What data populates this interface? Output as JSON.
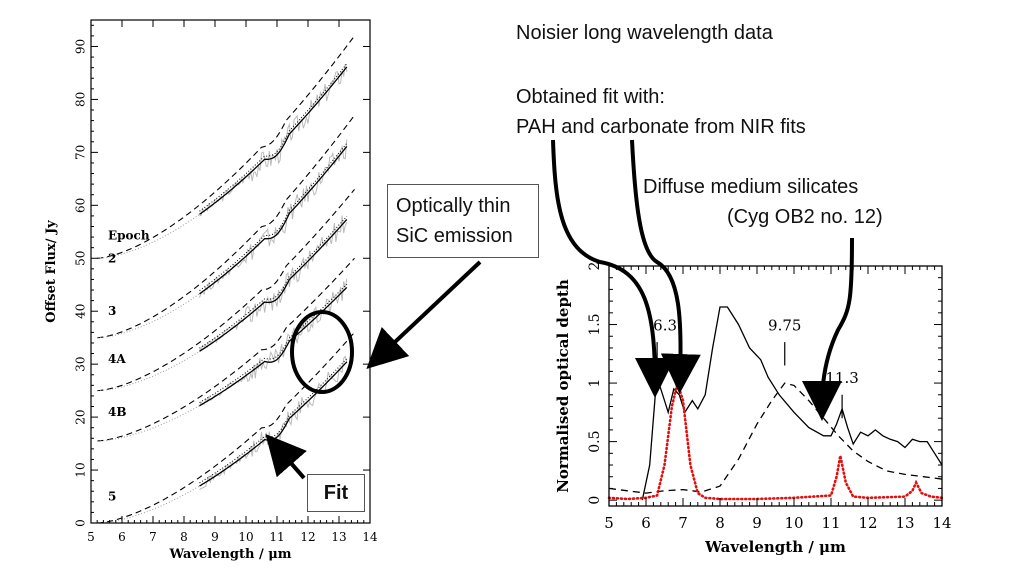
{
  "annotations": {
    "noisier": "Noisier long wavelength data",
    "obtained_line1": "Obtained fit with:",
    "obtained_line2": "PAH and carbonate from NIR fits",
    "diffuse_line1": "Diffuse medium silicates",
    "diffuse_line2": "(Cyg OB2 no. 12)",
    "sic_line1": "Optically thin",
    "sic_line2": "SiC emission",
    "fit_label": "Fit"
  },
  "chart_data": [
    {
      "type": "line",
      "xlabel": "Wavelength / μm",
      "ylabel": "Offset Flux/ Jy",
      "xlim": [
        5,
        14
      ],
      "ylim": [
        0,
        95
      ],
      "x_ticks": [
        "5",
        "6",
        "7",
        "8",
        "9",
        "10",
        "11",
        "12",
        "13",
        "14"
      ],
      "y_ticks": [
        "0",
        "10",
        "20",
        "30",
        "40",
        "50",
        "60",
        "70",
        "80",
        "90"
      ],
      "legend_title": "Epoch",
      "epochs": [
        {
          "name": "2",
          "label_y": 50,
          "base": 50,
          "top_obs": 88
        },
        {
          "name": "3",
          "label_y": 40,
          "base": 35,
          "top_obs": 73
        },
        {
          "name": "4A",
          "label_y": 31,
          "base": 25,
          "top_obs": 59
        },
        {
          "name": "4B",
          "label_y": 21,
          "base": 15.5,
          "top_obs": 46
        },
        {
          "name": "5",
          "label_y": 5,
          "base": 0,
          "top_obs": 32
        }
      ]
    },
    {
      "type": "line",
      "xlabel": "Wavelength / μm",
      "ylabel": "Normalised optical depth",
      "xlim": [
        5,
        14
      ],
      "ylim": [
        -0.05,
        2
      ],
      "x_ticks": [
        "5",
        "6",
        "7",
        "8",
        "9",
        "10",
        "11",
        "12",
        "13",
        "14"
      ],
      "y_ticks": [
        "0",
        "0.5",
        "1",
        "1.5",
        "2"
      ],
      "feature_labels": [
        {
          "text": "6.3",
          "x": 6.3,
          "y": 1.45
        },
        {
          "text": "9.75",
          "x": 9.75,
          "y": 1.45
        },
        {
          "text": "11.3",
          "x": 11.3,
          "y": 1.0
        }
      ],
      "series": [
        {
          "style": "solid",
          "color": "#000000",
          "points": [
            [
              5.9,
              0.0
            ],
            [
              6.1,
              0.3
            ],
            [
              6.25,
              0.9
            ],
            [
              6.35,
              1.0
            ],
            [
              6.5,
              0.85
            ],
            [
              6.6,
              0.75
            ],
            [
              6.75,
              0.95
            ],
            [
              6.9,
              0.9
            ],
            [
              7.05,
              0.75
            ],
            [
              7.25,
              0.85
            ],
            [
              7.4,
              0.78
            ],
            [
              7.6,
              0.9
            ],
            [
              7.8,
              1.3
            ],
            [
              8.0,
              1.65
            ],
            [
              8.2,
              1.65
            ],
            [
              8.5,
              1.5
            ],
            [
              8.8,
              1.3
            ],
            [
              9.1,
              1.2
            ],
            [
              9.3,
              1.05
            ],
            [
              9.6,
              0.9
            ],
            [
              10.0,
              0.75
            ],
            [
              10.4,
              0.62
            ],
            [
              10.8,
              0.55
            ],
            [
              11.0,
              0.55
            ],
            [
              11.15,
              0.65
            ],
            [
              11.3,
              0.78
            ],
            [
              11.45,
              0.62
            ],
            [
              11.6,
              0.48
            ],
            [
              11.8,
              0.58
            ],
            [
              12.0,
              0.55
            ],
            [
              12.2,
              0.6
            ],
            [
              12.4,
              0.55
            ],
            [
              12.6,
              0.52
            ],
            [
              12.8,
              0.5
            ],
            [
              13.0,
              0.45
            ],
            [
              13.2,
              0.52
            ],
            [
              13.4,
              0.5
            ],
            [
              13.6,
              0.5
            ],
            [
              13.8,
              0.4
            ],
            [
              14.0,
              0.3
            ]
          ]
        },
        {
          "style": "dashed",
          "color": "#000000",
          "points": [
            [
              5.0,
              0.1
            ],
            [
              5.5,
              0.08
            ],
            [
              6.0,
              0.06
            ],
            [
              6.5,
              0.08
            ],
            [
              7.0,
              0.09
            ],
            [
              7.5,
              0.07
            ],
            [
              8.0,
              0.12
            ],
            [
              8.5,
              0.35
            ],
            [
              9.0,
              0.65
            ],
            [
              9.4,
              0.85
            ],
            [
              9.75,
              1.0
            ],
            [
              10.0,
              0.98
            ],
            [
              10.4,
              0.85
            ],
            [
              10.8,
              0.7
            ],
            [
              11.2,
              0.55
            ],
            [
              11.6,
              0.42
            ],
            [
              12.0,
              0.33
            ],
            [
              12.5,
              0.25
            ],
            [
              13.0,
              0.22
            ],
            [
              13.5,
              0.2
            ],
            [
              14.0,
              0.18
            ]
          ]
        },
        {
          "style": "dotted",
          "color": "#e01010",
          "points": [
            [
              5.0,
              0.02
            ],
            [
              5.5,
              0.01
            ],
            [
              6.0,
              0.02
            ],
            [
              6.3,
              0.04
            ],
            [
              6.5,
              0.3
            ],
            [
              6.7,
              0.8
            ],
            [
              6.85,
              1.0
            ],
            [
              7.0,
              0.85
            ],
            [
              7.2,
              0.3
            ],
            [
              7.4,
              0.06
            ],
            [
              7.6,
              0.02
            ],
            [
              8.0,
              0.01
            ],
            [
              9.0,
              0.01
            ],
            [
              10.0,
              0.02
            ],
            [
              11.0,
              0.04
            ],
            [
              11.15,
              0.2
            ],
            [
              11.25,
              0.38
            ],
            [
              11.4,
              0.15
            ],
            [
              11.6,
              0.03
            ],
            [
              12.0,
              0.02
            ],
            [
              13.0,
              0.03
            ],
            [
              13.2,
              0.08
            ],
            [
              13.3,
              0.15
            ],
            [
              13.45,
              0.06
            ],
            [
              13.7,
              0.03
            ],
            [
              14.0,
              0.02
            ]
          ]
        }
      ]
    }
  ]
}
